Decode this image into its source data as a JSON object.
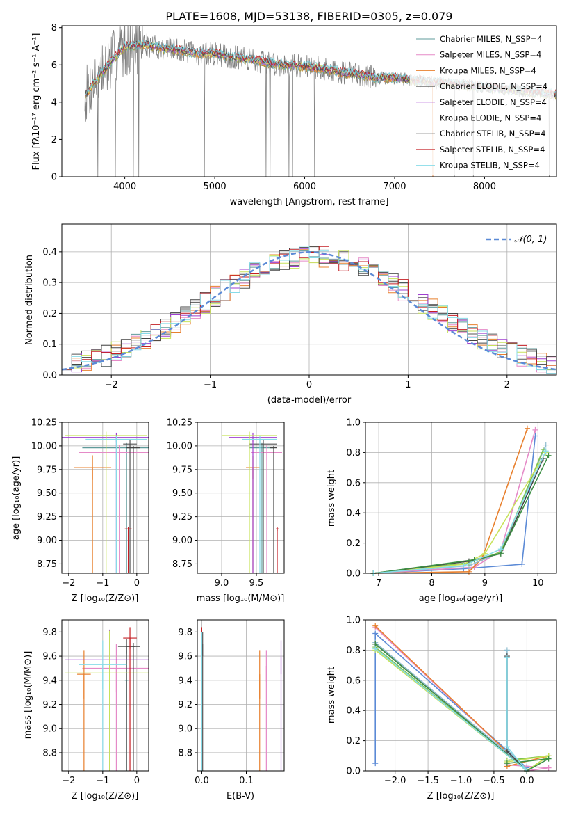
{
  "figure": {
    "title": "PLATE=1608, MJD=53138, FIBERID=0305, z=0.079"
  },
  "colors": {
    "series": [
      "#5f9b9b",
      "#e58ac7",
      "#e8802e",
      "#555555",
      "#9f3fcf",
      "#c7e25a",
      "#444444",
      "#c41f24",
      "#87dbe8"
    ],
    "mixed": [
      "#aa9c44",
      "#6fb7b8",
      "#e5823a",
      "#5d5d5d",
      "#a95fd0",
      "#d2da63",
      "#4a4a4a",
      "#bf3335",
      "#79d0dc"
    ],
    "observed": "#808080",
    "normal": "#5b8ad6",
    "weight_models": [
      "#5b8ad6",
      "#e58ac7",
      "#e8802e",
      "#8fbdcf",
      "#7cc24f",
      "#c7e25a",
      "#444444",
      "#3d8f45",
      "#87dbe8"
    ]
  },
  "chart_data": [
    {
      "id": "spectrum",
      "type": "line",
      "title": "PLATE=1608, MJD=53138, FIBERID=0305, z=0.079",
      "xlabel": "wavelength [Angstrom, rest frame]",
      "ylabel": "Flux [fλ10⁻¹⁷ erg cm⁻² s⁻¹ A⁻¹]",
      "xlim": [
        3300,
        8800
      ],
      "ylim": [
        0,
        8.1
      ],
      "xticks": [
        4000,
        5000,
        6000,
        7000,
        8000
      ],
      "yticks": [
        0,
        2,
        4,
        6,
        8
      ],
      "grid": false,
      "legend_position": "top-right",
      "legend": [
        "Chabrier MILES, N_SSP=4",
        "Salpeter MILES, N_SSP=4",
        "Kroupa MILES, N_SSP=4",
        "Chabrier ELODIE, N_SSP=4",
        "Salpeter ELODIE, N_SSP=4",
        "Kroupa ELODIE, N_SSP=4",
        "Chabrier STELIB, N_SSP=4",
        "Salpeter STELIB, N_SSP=4",
        "Kroupa STELIB, N_SSP=4"
      ],
      "continuum": {
        "x": [
          3550,
          3700,
          3850,
          4000,
          4200,
          4400,
          4600,
          4800,
          5000,
          5200,
          5400,
          5600,
          5800,
          6000,
          6200,
          6400,
          6600,
          6800,
          7000,
          7200,
          7400,
          7600,
          7800,
          8000,
          8200,
          8400,
          8600,
          8800
        ],
        "y": [
          4.3,
          5.3,
          6.2,
          7.0,
          7.1,
          6.9,
          6.8,
          6.6,
          6.6,
          6.4,
          6.3,
          6.1,
          6.0,
          5.9,
          5.8,
          5.6,
          5.5,
          5.3,
          5.3,
          5.2,
          5.1,
          5.0,
          4.9,
          4.8,
          4.7,
          4.6,
          4.5,
          4.4
        ]
      }
    },
    {
      "id": "residuals",
      "type": "histogram",
      "xlabel": "(data-model)/error",
      "ylabel": "Normed distribution",
      "xlim": [
        -2.5,
        2.5
      ],
      "ylim": [
        0,
        0.49
      ],
      "xticks": [
        -2,
        -1,
        0,
        1,
        2
      ],
      "yticks": [
        0.0,
        0.1,
        0.2,
        0.3,
        0.4
      ],
      "grid": true,
      "legend_position": "top-right",
      "normal_label": "𝒩(0, 1)",
      "bin_width": 0.1
    },
    {
      "id": "age-vs-z",
      "type": "errorbar",
      "xlabel": "Z [log₁₀(Z/Z⊙)]",
      "ylabel": "age  [log₁₀(age/yr)]",
      "xlim": [
        -2.2,
        0.35
      ],
      "ylim": [
        8.65,
        10.25
      ],
      "xticks": [
        -2,
        -1,
        0
      ],
      "yticks": [
        8.75,
        9.0,
        9.25,
        9.5,
        9.75,
        10.0,
        10.25
      ],
      "grid": true,
      "points": [
        {
          "x": -0.3,
          "xerr": 1.3,
          "y": 9.98,
          "yerr": 0.05
        },
        {
          "x": -0.5,
          "xerr": 1.2,
          "y": 9.93,
          "yerr": 0.08
        },
        {
          "x": -1.3,
          "xerr": 0.55,
          "y": 9.77,
          "yerr": 0.13
        },
        {
          "x": -0.2,
          "xerr": 0.2,
          "y": 10.02,
          "yerr": 0.04
        },
        {
          "x": -0.6,
          "xerr": 1.6,
          "y": 10.09,
          "yerr": 0.05
        },
        {
          "x": -0.9,
          "xerr": 1.2,
          "y": 10.11,
          "yerr": 0.04
        },
        {
          "x": -0.1,
          "xerr": 0.2,
          "y": 9.98,
          "yerr": 0.02
        },
        {
          "x": -0.25,
          "xerr": 0.1,
          "y": 9.12,
          "yerr": 0.02
        },
        {
          "x": -0.6,
          "xerr": 0.9,
          "y": 10.07,
          "yerr": 0.04
        }
      ]
    },
    {
      "id": "age-vs-mass",
      "type": "errorbar",
      "xlabel": "mass [log₁₀(M/M⊙)]",
      "ylabel": "",
      "xlim": [
        8.65,
        9.9
      ],
      "ylim": [
        8.65,
        10.25
      ],
      "xticks": [
        9.0,
        9.5
      ],
      "yticks": [
        8.75,
        9.0,
        9.25,
        9.5,
        9.75,
        10.0,
        10.25
      ],
      "grid": true,
      "points": [
        {
          "x": 9.58,
          "xerr": 0.18,
          "y": 9.98,
          "yerr": 0.05
        },
        {
          "x": 9.65,
          "xerr": 0.22,
          "y": 9.93,
          "yerr": 0.08
        },
        {
          "x": 9.45,
          "xerr": 0.1,
          "y": 9.77,
          "yerr": 0.12
        },
        {
          "x": 9.6,
          "xerr": 0.2,
          "y": 10.02,
          "yerr": 0.04
        },
        {
          "x": 9.45,
          "xerr": 0.35,
          "y": 10.09,
          "yerr": 0.05
        },
        {
          "x": 9.4,
          "xerr": 0.4,
          "y": 10.11,
          "yerr": 0.04
        },
        {
          "x": 9.75,
          "xerr": 0.05,
          "y": 9.98,
          "yerr": 0.02
        },
        {
          "x": 9.8,
          "xerr": 0.02,
          "y": 9.12,
          "yerr": 0.02
        },
        {
          "x": 9.55,
          "xerr": 0.25,
          "y": 10.07,
          "yerr": 0.04
        }
      ]
    },
    {
      "id": "weight-vs-age",
      "type": "line",
      "xlabel": "age  [log₁₀(age/yr)]",
      "ylabel": "mass weight",
      "xlim": [
        6.75,
        10.35
      ],
      "ylim": [
        0,
        1.0
      ],
      "xticks": [
        7,
        8,
        9,
        10
      ],
      "yticks": [
        0.0,
        0.2,
        0.4,
        0.6,
        0.8,
        1.0
      ],
      "grid": true,
      "series": [
        {
          "x": [
            6.9,
            8.6,
            9.7,
            9.95
          ],
          "y": [
            0.0,
            0.03,
            0.06,
            0.91
          ]
        },
        {
          "x": [
            6.9,
            8.8,
            9.3,
            9.95
          ],
          "y": [
            0.0,
            0.04,
            0.15,
            0.95
          ]
        },
        {
          "x": [
            6.9,
            8.7,
            8.95,
            9.8
          ],
          "y": [
            0.0,
            0.01,
            0.1,
            0.96
          ]
        },
        {
          "x": [
            6.9,
            8.7,
            9.3,
            10.15
          ],
          "y": [
            0.0,
            0.05,
            0.14,
            0.85
          ]
        },
        {
          "x": [
            6.9,
            8.7,
            9.3,
            10.1
          ],
          "y": [
            0.0,
            0.07,
            0.14,
            0.82
          ]
        },
        {
          "x": [
            6.9,
            8.6,
            9.0,
            10.15
          ],
          "y": [
            0.0,
            0.06,
            0.13,
            0.8
          ]
        },
        {
          "x": [
            6.9,
            8.7,
            9.3,
            10.1
          ],
          "y": [
            0.0,
            0.08,
            0.13,
            0.76
          ]
        },
        {
          "x": [
            6.9,
            8.8,
            9.3,
            10.2
          ],
          "y": [
            0.0,
            0.09,
            0.13,
            0.78
          ]
        },
        {
          "x": [
            6.9,
            8.6,
            9.3,
            10.15
          ],
          "y": [
            0.0,
            0.05,
            0.16,
            0.81
          ]
        }
      ]
    },
    {
      "id": "mass-vs-z",
      "type": "errorbar",
      "xlabel": "Z [log₁₀(Z/Z⊙)]",
      "ylabel": "mass [log₁₀(M/M⊙)]",
      "xlim": [
        -2.2,
        0.35
      ],
      "ylim": [
        8.65,
        9.9
      ],
      "xticks": [
        -2,
        -1,
        0
      ],
      "yticks": [
        8.8,
        9.0,
        9.2,
        9.4,
        9.6,
        9.8
      ],
      "grid": true,
      "points": [
        {
          "x": -0.3,
          "xerr": 0.05,
          "y": 9.4,
          "yerr": 0.25
        },
        {
          "x": -0.6,
          "xerr": 1.0,
          "y": 9.5,
          "yerr": 0.2
        },
        {
          "x": -1.55,
          "xerr": 0.2,
          "y": 9.45,
          "yerr": 0.2
        },
        {
          "x": -0.3,
          "xerr": 0.25,
          "y": 9.68,
          "yerr": 0.06
        },
        {
          "x": -0.8,
          "xerr": 1.3,
          "y": 9.57,
          "yerr": 0.25
        },
        {
          "x": -0.8,
          "xerr": 1.3,
          "y": 9.46,
          "yerr": 0.35
        },
        {
          "x": -0.1,
          "xerr": 0.2,
          "y": 9.68,
          "yerr": 0.03
        },
        {
          "x": -0.2,
          "xerr": 0.2,
          "y": 9.75,
          "yerr": 0.09
        },
        {
          "x": -1.0,
          "xerr": 0.7,
          "y": 9.53,
          "yerr": 0.2
        }
      ]
    },
    {
      "id": "mass-vs-ebv",
      "type": "errorbar",
      "xlabel": "E(B-V)",
      "ylabel": "",
      "xlim": [
        -0.01,
        0.185
      ],
      "ylim": [
        8.65,
        9.9
      ],
      "xticks": [
        0.0,
        0.1
      ],
      "yticks": [
        8.8,
        9.0,
        9.2,
        9.4,
        9.6,
        9.8
      ],
      "grid": true,
      "points": [
        {
          "x": 0.0,
          "y": 9.25,
          "yerr": 0.5
        },
        {
          "x": 0.145,
          "y": 9.52,
          "yerr": 0.13
        },
        {
          "x": 0.13,
          "y": 9.45,
          "yerr": 0.2
        },
        {
          "x": 0.002,
          "y": 9.7,
          "yerr": 0.1
        },
        {
          "x": 0.178,
          "y": 9.59,
          "yerr": 0.14
        },
        {
          "x": 0.0,
          "y": 9.0,
          "yerr": 0.25
        },
        {
          "x": 0.0,
          "y": 9.76,
          "yerr": 0.06
        },
        {
          "x": 0.0,
          "y": 9.78,
          "yerr": 0.06
        },
        {
          "x": 0.0,
          "y": 9.5,
          "yerr": 0.3
        }
      ]
    },
    {
      "id": "weight-vs-z",
      "type": "line",
      "xlabel": "Z [log₁₀(Z/Z⊙)]",
      "ylabel": "mass weight",
      "xlim": [
        -2.45,
        0.45
      ],
      "ylim": [
        0,
        1.0
      ],
      "xticks": [
        -2.0,
        -1.5,
        -1.0,
        -0.5,
        0.0
      ],
      "yticks": [
        0.0,
        0.2,
        0.4,
        0.6,
        0.8,
        1.0
      ],
      "grid": true,
      "series": [
        {
          "x": [
            -2.3,
            -2.3,
            0.0,
            0.0
          ],
          "y": [
            0.05,
            0.91,
            0.02,
            0.03
          ]
        },
        {
          "x": [
            -2.3,
            0.0,
            0.33,
            -0.3
          ],
          "y": [
            0.95,
            0.0,
            0.02,
            0.04
          ]
        },
        {
          "x": [
            -2.3,
            0.0,
            0.33,
            -0.3
          ],
          "y": [
            0.96,
            0.0,
            0.1,
            0.03
          ]
        },
        {
          "x": [
            -2.3,
            0.0,
            -0.3,
            -0.3
          ],
          "y": [
            0.85,
            0.01,
            0.14,
            0.8
          ]
        },
        {
          "x": [
            -2.3,
            0.0,
            0.33,
            -0.3
          ],
          "y": [
            0.82,
            0.0,
            0.1,
            0.07
          ]
        },
        {
          "x": [
            -2.3,
            0.0,
            0.33,
            -0.3
          ],
          "y": [
            0.8,
            0.0,
            0.1,
            0.06
          ]
        },
        {
          "x": [
            -2.3,
            0.0,
            -0.3,
            -0.3
          ],
          "y": [
            0.84,
            0.0,
            0.13,
            0.76
          ]
        },
        {
          "x": [
            -2.3,
            0.0,
            0.33,
            -0.3
          ],
          "y": [
            0.84,
            0.0,
            0.08,
            0.05
          ]
        },
        {
          "x": [
            -2.3,
            0.0,
            -0.3,
            -0.3
          ],
          "y": [
            0.81,
            0.0,
            0.16,
            0.75
          ]
        }
      ]
    }
  ]
}
